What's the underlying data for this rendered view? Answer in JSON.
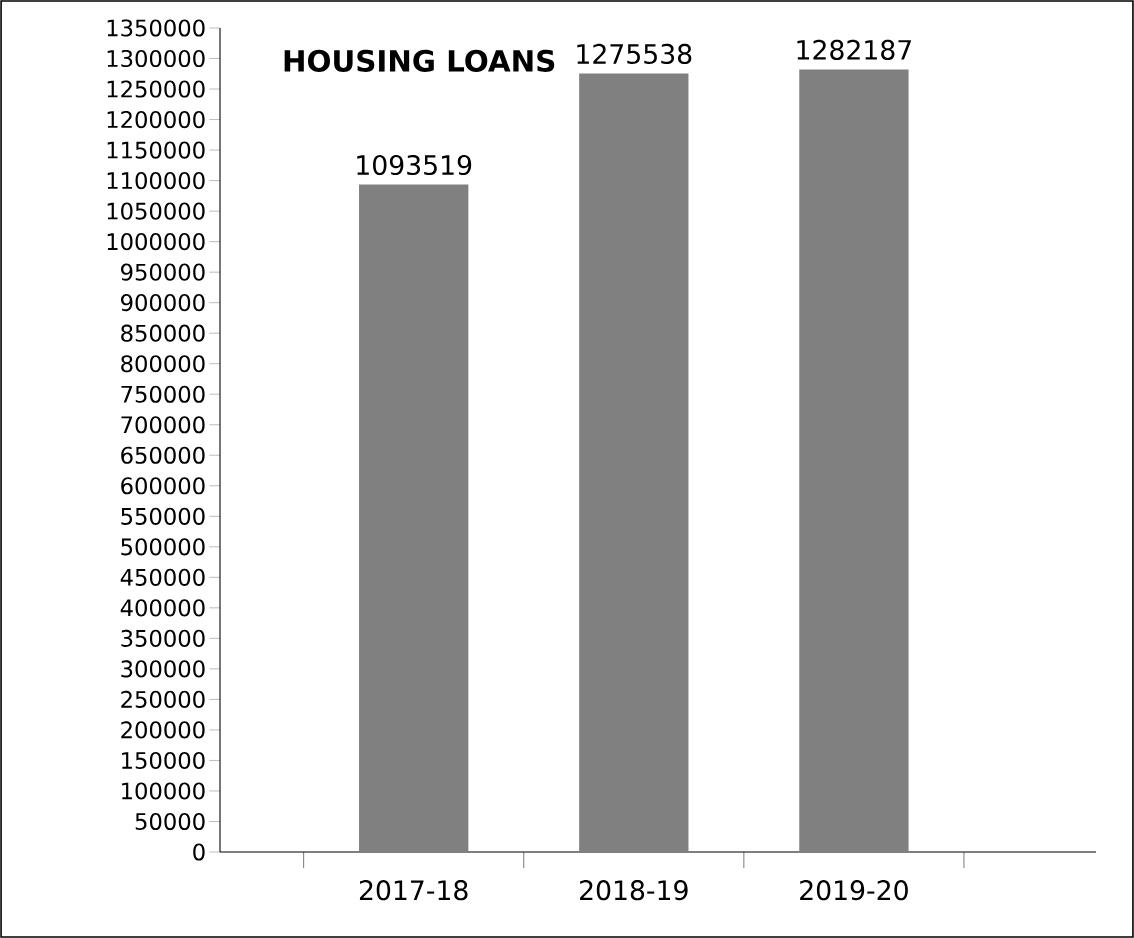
{
  "chart_data": {
    "type": "bar",
    "title": "HOUSING LOANS",
    "categories": [
      "2017-18",
      "2018-19",
      "2019-20"
    ],
    "values": [
      1093519,
      1275538,
      1282187
    ],
    "value_labels": [
      "1093519",
      "1275538",
      "1282187"
    ],
    "color": "#808080",
    "ylim": [
      0,
      1350000
    ],
    "yticks": [
      0,
      50000,
      100000,
      150000,
      200000,
      250000,
      300000,
      350000,
      400000,
      450000,
      500000,
      550000,
      600000,
      650000,
      700000,
      750000,
      800000,
      850000,
      900000,
      950000,
      1000000,
      1050000,
      1100000,
      1150000,
      1200000,
      1250000,
      1300000,
      1350000
    ],
    "grid": false
  }
}
